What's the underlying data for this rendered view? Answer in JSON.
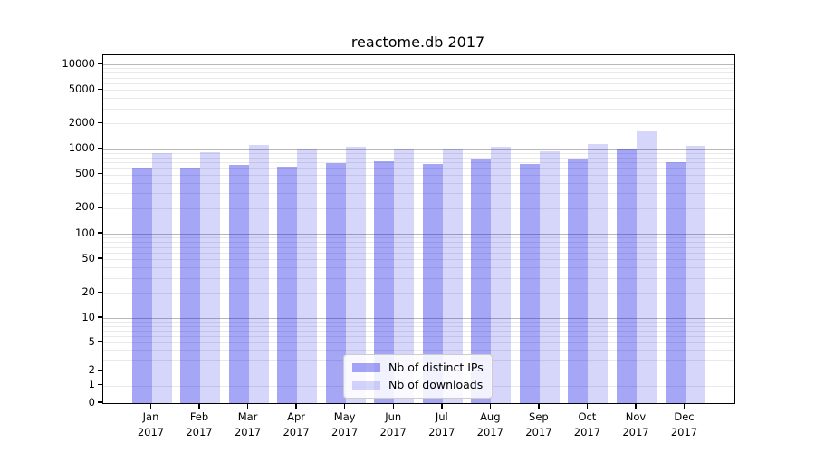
{
  "title": "reactome.db 2017",
  "chart_data": {
    "type": "bar",
    "title": "reactome.db 2017",
    "x_tick_months": [
      "Jan",
      "Feb",
      "Mar",
      "Apr",
      "May",
      "Jun",
      "Jul",
      "Aug",
      "Sep",
      "Oct",
      "Nov",
      "Dec"
    ],
    "x_tick_year": "2017",
    "series": [
      {
        "name": "Nb of distinct IPs",
        "color": "rgba(0,0,230,0.35)",
        "values": [
          600,
          610,
          650,
          620,
          690,
          715,
          660,
          755,
          670,
          770,
          1000,
          705
        ]
      },
      {
        "name": "Nb of downloads",
        "color": "rgba(0,0,230,0.16)",
        "values": [
          890,
          915,
          1130,
          980,
          1060,
          1005,
          1010,
          1070,
          940,
          1160,
          1640,
          1100
        ]
      }
    ],
    "y_axis": {
      "scale": "symlog",
      "tick_values": [
        0,
        1,
        2,
        5,
        10,
        20,
        50,
        100,
        200,
        500,
        1000,
        2000,
        5000,
        10000
      ],
      "tick_labels": [
        "0",
        "1",
        "2",
        "5",
        "10",
        "20",
        "50",
        "100",
        "200",
        "500",
        "1000",
        "2000",
        "5000",
        "10000"
      ],
      "major_grid_values": [
        10,
        100,
        1000,
        10000
      ],
      "minor_grid_values": [
        1,
        2,
        3,
        4,
        5,
        6,
        7,
        8,
        9,
        20,
        30,
        40,
        50,
        60,
        70,
        80,
        90,
        200,
        300,
        400,
        500,
        600,
        700,
        800,
        900,
        2000,
        3000,
        4000,
        5000,
        6000,
        7000,
        8000,
        9000
      ],
      "ylim": [
        0,
        12700
      ],
      "grid": true
    },
    "legend": {
      "location": "lower center",
      "entries": [
        "Nb of distinct IPs",
        "Nb of downloads"
      ]
    }
  },
  "colors": {
    "bar_distinct_ips": "rgba(0,0,230,0.35)",
    "bar_downloads": "rgba(0,0,230,0.16)",
    "grid_major": "#b8b8b8",
    "grid_minor": "#e9e9e9",
    "axis_spine": "#000000",
    "background": "#ffffff"
  }
}
